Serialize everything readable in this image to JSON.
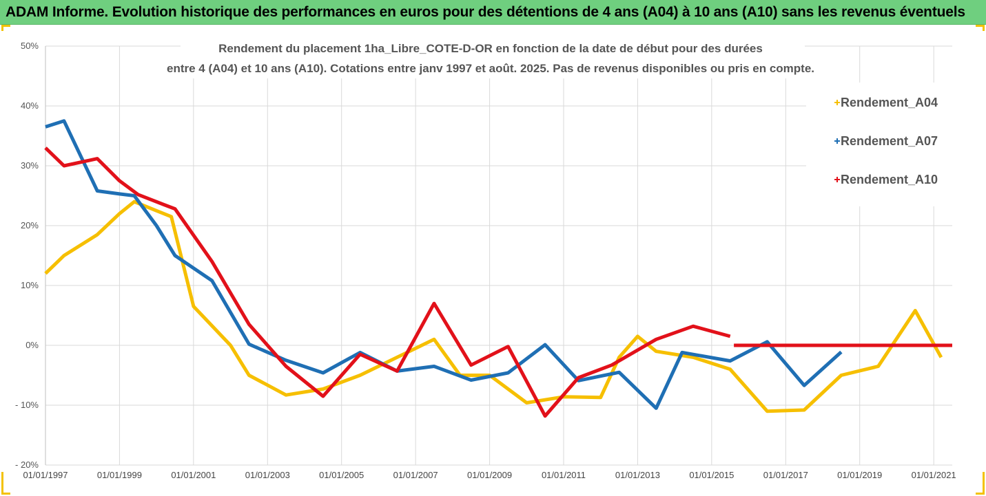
{
  "header": {
    "title": "ADAM Informe. Evolution historique des performances en euros pour des détentions de 4 ans (A04) à 10 ans (A10) sans les revenus éventuels"
  },
  "chart_data": {
    "type": "line",
    "title_lines": [
      "Rendement du placement 1ha_Libre_COTE-D-OR en fonction de la date de début pour des durées",
      "entre 4 (A04) et 10 ans (A10). Cotations entre janv 1997 et août. 2025. Pas de revenus disponibles ou pris en compte."
    ],
    "y_ticks": [
      "50%",
      "40%",
      "30%",
      "20%",
      "10%",
      "0%",
      "- 10%",
      "- 20%"
    ],
    "x_ticks": [
      "01/01/1997",
      "01/01/1999",
      "01/01/2001",
      "01/01/2003",
      "01/01/2005",
      "01/01/2007",
      "01/01/2009",
      "01/01/2011",
      "01/01/2013",
      "01/01/2015",
      "01/01/2017",
      "01/01/2019",
      "01/01/2021"
    ],
    "ylim": [
      -20,
      50
    ],
    "xlim": [
      1997.0,
      2021.5
    ],
    "grid": true,
    "legend_position": "right",
    "series": [
      {
        "name": "Rendement_A04",
        "color": "#f6bf00",
        "points": [
          [
            1997.0,
            12
          ],
          [
            1997.5,
            15
          ],
          [
            1998.4,
            18.5
          ],
          [
            1999.0,
            22
          ],
          [
            1999.4,
            24
          ],
          [
            2000.0,
            22.5
          ],
          [
            2000.4,
            21.5
          ],
          [
            2001.0,
            6.5
          ],
          [
            2002.0,
            0
          ],
          [
            2002.5,
            -5
          ],
          [
            2003.5,
            -8.3
          ],
          [
            2004.5,
            -7.3
          ],
          [
            2005.5,
            -5
          ],
          [
            2006.5,
            -2
          ],
          [
            2007.5,
            1
          ],
          [
            2008.2,
            -5
          ],
          [
            2009.0,
            -5
          ],
          [
            2010.0,
            -9.6
          ],
          [
            2011.0,
            -8.6
          ],
          [
            2012.0,
            -8.7
          ],
          [
            2012.5,
            -2
          ],
          [
            2013.0,
            1.5
          ],
          [
            2013.5,
            -1
          ],
          [
            2014.5,
            -2
          ],
          [
            2015.5,
            -4
          ],
          [
            2016.5,
            -11
          ],
          [
            2017.5,
            -10.8
          ],
          [
            2018.5,
            -5
          ],
          [
            2019.5,
            -3.5
          ],
          [
            2020.5,
            5.8
          ],
          [
            2021.2,
            -2
          ]
        ]
      },
      {
        "name": "Rendement_A07",
        "color": "#1f6fb4",
        "points": [
          [
            1997.0,
            36.5
          ],
          [
            1997.5,
            37.5
          ],
          [
            1998.4,
            25.8
          ],
          [
            1999.0,
            25.3
          ],
          [
            1999.4,
            25
          ],
          [
            2000.0,
            20
          ],
          [
            2000.5,
            15
          ],
          [
            2001.5,
            10.8
          ],
          [
            2002.5,
            0.2
          ],
          [
            2003.5,
            -2.5
          ],
          [
            2004.5,
            -4.6
          ],
          [
            2005.5,
            -1.2
          ],
          [
            2006.5,
            -4.3
          ],
          [
            2007.5,
            -3.5
          ],
          [
            2008.5,
            -5.8
          ],
          [
            2009.5,
            -4.6
          ],
          [
            2010.5,
            0.1
          ],
          [
            2011.4,
            -5.9
          ],
          [
            2012.5,
            -4.5
          ],
          [
            2013.5,
            -10.5
          ],
          [
            2014.2,
            -1.2
          ],
          [
            2015.5,
            -2.6
          ],
          [
            2016.5,
            0.6
          ],
          [
            2017.5,
            -6.7
          ],
          [
            2018.5,
            -1.1
          ]
        ]
      },
      {
        "name": "Rendement_A10",
        "color": "#e2111a",
        "points": [
          [
            1997.0,
            33
          ],
          [
            1997.5,
            30
          ],
          [
            1998.4,
            31.2
          ],
          [
            1999.0,
            27.5
          ],
          [
            1999.5,
            25.2
          ],
          [
            2000.2,
            23.5
          ],
          [
            2000.5,
            22.8
          ],
          [
            2001.5,
            14
          ],
          [
            2002.5,
            3.5
          ],
          [
            2003.5,
            -3.5
          ],
          [
            2004.5,
            -8.5
          ],
          [
            2005.5,
            -1.5
          ],
          [
            2006.5,
            -4.3
          ],
          [
            2007.5,
            7
          ],
          [
            2008.5,
            -3.3
          ],
          [
            2009.5,
            -0.2
          ],
          [
            2010.5,
            -11.8
          ],
          [
            2011.4,
            -5.4
          ],
          [
            2012.3,
            -3.3
          ],
          [
            2013.5,
            1
          ],
          [
            2014.5,
            3.2
          ],
          [
            2015.5,
            1.5
          ]
        ]
      },
      {
        "name": "",
        "color": "#e2111a",
        "points": [
          [
            2015.6,
            0
          ],
          [
            2021.5,
            0
          ]
        ]
      }
    ]
  }
}
